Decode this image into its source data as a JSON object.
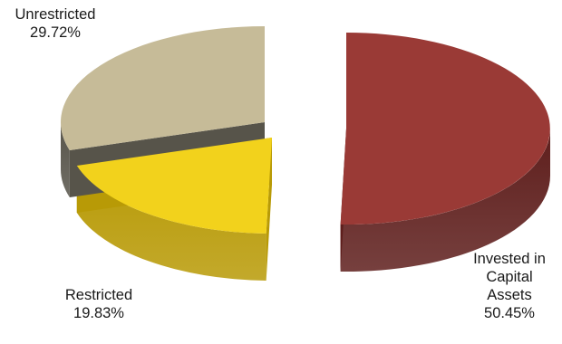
{
  "chart_data": {
    "type": "pie",
    "style": "3d-exploded",
    "series": [
      {
        "slices": [
          {
            "label": "Invested in Capital Assets",
            "value": 50.45,
            "value_text": "50.45%",
            "color": "#9a3a36",
            "dark_color": "#5e1e1c"
          },
          {
            "label": "Restricted",
            "value": 19.83,
            "value_text": "19.83%",
            "color": "#f2d21c",
            "dark_color": "#b89a06"
          },
          {
            "label": "Unrestricted",
            "value": 29.72,
            "value_text": "29.72%",
            "color": "#c6bb98",
            "dark_color": "#57544a"
          }
        ]
      }
    ],
    "labels": {
      "invested": {
        "lines": [
          "Invested in",
          "Capital",
          "Assets"
        ],
        "value": "50.45%"
      },
      "restricted": {
        "lines": [
          "Restricted"
        ],
        "value": "19.83%"
      },
      "unrestricted": {
        "lines": [
          "Unrestricted"
        ],
        "value": "29.72%"
      }
    }
  }
}
